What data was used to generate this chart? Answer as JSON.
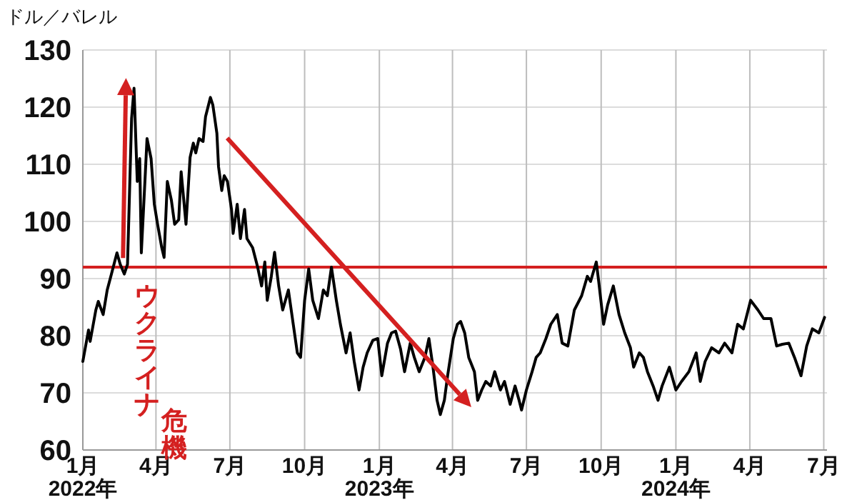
{
  "chart_data": {
    "type": "line",
    "ylabel": "ドル／バレル",
    "x": [
      "2022-01-01",
      "2022-01-08",
      "2022-01-10",
      "2022-01-17",
      "2022-01-20",
      "2022-01-26",
      "2022-01-31",
      "2022-02-05",
      "2022-02-12",
      "2022-02-16",
      "2022-02-21",
      "2022-02-25",
      "2022-03-02",
      "2022-03-05",
      "2022-03-09",
      "2022-03-12",
      "2022-03-14",
      "2022-03-19",
      "2022-03-21",
      "2022-03-26",
      "2022-03-30",
      "2022-04-03",
      "2022-04-08",
      "2022-04-11",
      "2022-04-15",
      "2022-04-20",
      "2022-04-24",
      "2022-04-29",
      "2022-05-02",
      "2022-05-08",
      "2022-05-13",
      "2022-05-17",
      "2022-05-20",
      "2022-05-24",
      "2022-05-29",
      "2022-06-01",
      "2022-06-07",
      "2022-06-10",
      "2022-06-15",
      "2022-06-17",
      "2022-06-21",
      "2022-06-24",
      "2022-06-28",
      "2022-07-03",
      "2022-07-05",
      "2022-07-10",
      "2022-07-14",
      "2022-07-19",
      "2022-07-22",
      "2022-07-29",
      "2022-08-04",
      "2022-08-09",
      "2022-08-13",
      "2022-08-16",
      "2022-08-21",
      "2022-08-25",
      "2022-08-30",
      "2022-09-04",
      "2022-09-11",
      "2022-09-17",
      "2022-09-22",
      "2022-09-26",
      "2022-10-01",
      "2022-10-06",
      "2022-10-11",
      "2022-10-18",
      "2022-10-24",
      "2022-10-29",
      "2022-11-03",
      "2022-11-09",
      "2022-11-14",
      "2022-11-21",
      "2022-11-26",
      "2022-12-01",
      "2022-12-07",
      "2022-12-12",
      "2022-12-17",
      "2022-12-24",
      "2022-12-30",
      "2023-01-04",
      "2023-01-11",
      "2023-01-16",
      "2023-01-21",
      "2023-01-27",
      "2023-02-01",
      "2023-02-08",
      "2023-02-13",
      "2023-02-19",
      "2023-02-26",
      "2023-03-03",
      "2023-03-08",
      "2023-03-13",
      "2023-03-17",
      "2023-03-22",
      "2023-03-26",
      "2023-04-02",
      "2023-04-07",
      "2023-04-11",
      "2023-04-16",
      "2023-04-21",
      "2023-04-28",
      "2023-05-02",
      "2023-05-07",
      "2023-05-12",
      "2023-05-18",
      "2023-05-23",
      "2023-05-30",
      "2023-06-04",
      "2023-06-11",
      "2023-06-17",
      "2023-06-22",
      "2023-06-25",
      "2023-07-01",
      "2023-07-08",
      "2023-07-13",
      "2023-07-18",
      "2023-07-25",
      "2023-07-31",
      "2023-08-08",
      "2023-08-14",
      "2023-08-21",
      "2023-08-29",
      "2023-09-07",
      "2023-09-14",
      "2023-09-18",
      "2023-09-25",
      "2023-09-28",
      "2023-10-04",
      "2023-10-09",
      "2023-10-16",
      "2023-10-23",
      "2023-10-30",
      "2023-11-06",
      "2023-11-10",
      "2023-11-17",
      "2023-11-22",
      "2023-11-27",
      "2023-12-04",
      "2023-12-10",
      "2023-12-15",
      "2023-12-24",
      "2024-01-01",
      "2024-01-08",
      "2024-01-17",
      "2024-01-26",
      "2024-01-31",
      "2024-02-06",
      "2024-02-14",
      "2024-02-23",
      "2024-03-01",
      "2024-03-10",
      "2024-03-17",
      "2024-03-24",
      "2024-04-02",
      "2024-04-11",
      "2024-04-18",
      "2024-04-27",
      "2024-05-04",
      "2024-05-11",
      "2024-05-19",
      "2024-05-26",
      "2024-06-03",
      "2024-06-10",
      "2024-06-17",
      "2024-06-25",
      "2024-07-02"
    ],
    "series": [
      {
        "color": "#000000",
        "values": [
          75.5,
          81,
          79,
          84.5,
          86,
          83.7,
          88,
          90.7,
          94.5,
          92.5,
          90.8,
          92.5,
          118,
          123.3,
          107,
          111,
          94.5,
          108.7,
          114.5,
          111,
          103,
          99.5,
          95.5,
          93.7,
          107,
          103.7,
          99.5,
          100.3,
          108.7,
          99.5,
          111.2,
          113.7,
          112,
          114.5,
          114,
          118.3,
          121.7,
          120.4,
          115.4,
          109.6,
          105.4,
          108,
          107,
          102.1,
          97.9,
          103,
          97,
          102.1,
          97,
          95.4,
          92.1,
          88.7,
          92.9,
          86.2,
          90.4,
          94.6,
          88.7,
          84.5,
          88,
          82,
          77,
          76.2,
          86.2,
          91.7,
          86.2,
          83,
          88,
          87,
          92,
          86.2,
          82,
          77,
          80.5,
          75.5,
          70.5,
          74.5,
          77,
          79.2,
          79.5,
          73,
          78.7,
          80.5,
          80.8,
          77.7,
          73.7,
          78.7,
          76.2,
          73.7,
          76.2,
          79.5,
          74.5,
          68.7,
          66.2,
          68.7,
          73,
          79.5,
          82,
          82.5,
          80.5,
          76.2,
          73.7,
          68.7,
          70.5,
          72,
          71.2,
          73.7,
          70.5,
          72,
          68,
          71.2,
          68.7,
          67,
          70.5,
          73.7,
          76.2,
          77,
          79.5,
          82,
          83.7,
          78.7,
          78.2,
          84.5,
          87,
          90.4,
          89.5,
          92.9,
          89.5,
          82,
          85.4,
          88.7,
          83.7,
          80.5,
          77.9,
          74.5,
          77,
          76.2,
          73.7,
          71.2,
          68.7,
          71.2,
          74.5,
          70.5,
          72,
          73.7,
          77,
          72,
          75.5,
          77.9,
          77,
          78.7,
          77,
          82,
          81.2,
          86.2,
          84.5,
          83,
          83,
          78.2,
          78.5,
          78.7,
          76.2,
          73,
          78.2,
          81.2,
          80.5,
          83.2
        ]
      }
    ],
    "xlim": [
      "2022-01-01",
      "2024-07-05"
    ],
    "ylim": [
      60,
      130
    ],
    "yticks": [
      60,
      70,
      80,
      90,
      100,
      110,
      120,
      130
    ],
    "xticks": [
      {
        "value": "2022-01-01",
        "label": "1月\n2022年"
      },
      {
        "value": "2022-04-01",
        "label": "4月"
      },
      {
        "value": "2022-07-01",
        "label": "7月"
      },
      {
        "value": "2022-10-01",
        "label": "10月"
      },
      {
        "value": "2023-01-01",
        "label": "1月\n2023年"
      },
      {
        "value": "2023-04-01",
        "label": "4月"
      },
      {
        "value": "2023-07-01",
        "label": "7月"
      },
      {
        "value": "2023-10-01",
        "label": "10月"
      },
      {
        "value": "2024-01-01",
        "label": "1月\n2024年"
      },
      {
        "value": "2024-04-01",
        "label": "4月"
      },
      {
        "value": "2024-07-01",
        "label": "7月"
      }
    ],
    "grid": true,
    "ref_lines": [
      {
        "axis": "y",
        "value": 92,
        "color": "#d42020"
      }
    ],
    "annotations": [
      "ウクライナ危機"
    ]
  }
}
